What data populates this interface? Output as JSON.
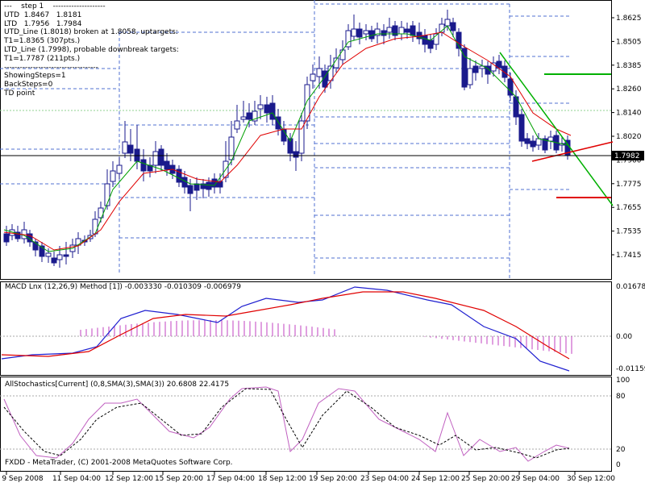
{
  "info_lines": [
    "---    step 1    --------------------",
    "UTD  1.8467   1.8181",
    "LTD   1.7956   1.7984",
    "UTD_Line (1.8018) broken at 1.8058, uptargets:",
    "T1=1.8365 (307pts.)",
    "LTD_Line (1.7998), probable downbreak targets:",
    "T1=1.7787 (211pts.)",
    "------------------------------------",
    "ShowingSteps=1",
    "BackSteps=0",
    "TD point"
  ],
  "price_axis": {
    "labels": [
      "1.8625",
      "1.8505",
      "1.8385",
      "1.8260",
      "1.8140",
      "1.8020",
      "1.7900",
      "1.7775",
      "1.7655",
      "1.7535",
      "1.7415"
    ],
    "current_price": "1.7982"
  },
  "macd": {
    "title": "MACD Lnx (12,26,9) Method [1]) -0.003330 -0.010309 -0.006979",
    "axis_labels": [
      "0.01678",
      "0.00",
      "-0.01159"
    ]
  },
  "stochastic": {
    "title": "AllStochastics[Current] (0,8,SMA(3),SMA(3)) 20.6808 22.4175",
    "axis_labels": [
      "100",
      "80",
      "20",
      "0"
    ]
  },
  "time_axis": [
    "9 Sep 2008",
    "11 Sep 04:00",
    "12 Sep 12:00",
    "15 Sep 20:00",
    "17 Sep 04:00",
    "18 Sep 12:00",
    "19 Sep 20:00",
    "23 Sep 04:00",
    "24 Sep 12:00",
    "25 Sep 20:00",
    "29 Sep 04:00",
    "30 Sep 12:00"
  ],
  "copyright": "FXDD - MetaTrader, (C) 2001-2008 MetaQuotes Software Corp.",
  "colors": {
    "bull_candle": "#ffffff",
    "bear_candle": "#1a1a8c",
    "candle_border": "#1a1a8c",
    "ma_fast": "#00a000",
    "ma_slow": "#e00000",
    "macd_line": "#2020d0",
    "signal_line": "#e00000",
    "histogram": "#c040c0",
    "stoch_main": "#c060c0",
    "stoch_signal": "#000000",
    "dashed_levels": "#5070d0",
    "target_up": "#00b000",
    "target_down": "#e00000"
  }
}
